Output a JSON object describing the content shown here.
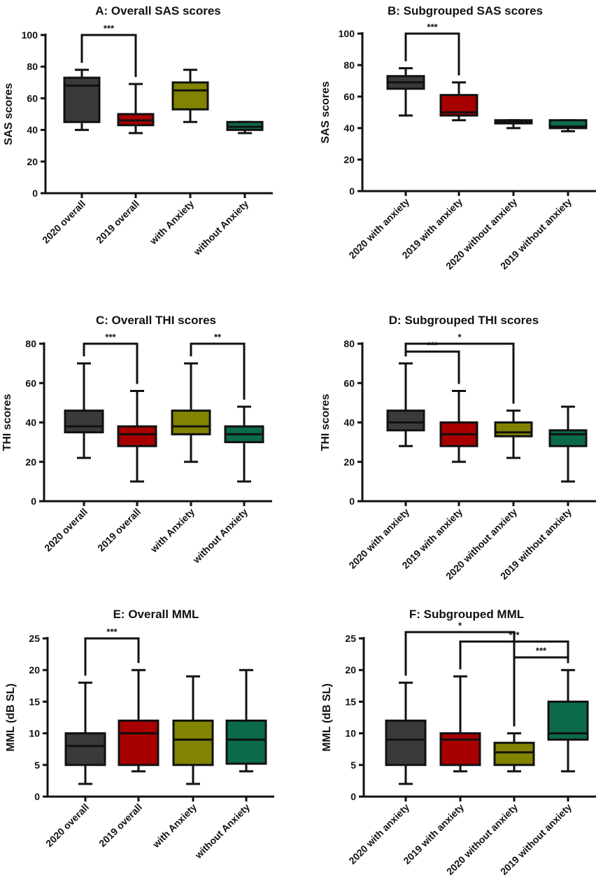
{
  "colors": {
    "2020 overall": "#3a3a3a",
    "2019 overall": "#a80000",
    "with Anxiety": "#828300",
    "without Anxiety": "#0b6b49",
    "2020 with anxiety": "#3a3a3a",
    "2019 with anxiety": "#a80000",
    "2020 without anxiety": "#828300",
    "2019 without anxiety": "#0b6b49"
  },
  "chart_data": [
    {
      "type": "box",
      "title": "A: Overall SAS scores",
      "ylabel": "SAS scores",
      "ylim": [
        0,
        100
      ],
      "yticks": [
        0,
        20,
        40,
        60,
        80,
        100
      ],
      "categories": [
        "2020 overall",
        "2019 overall",
        "with Anxiety",
        "without Anxiety"
      ],
      "boxes": [
        {
          "min": 40,
          "q1": 45,
          "median": 68,
          "q3": 73,
          "max": 78
        },
        {
          "min": 38,
          "q1": 43,
          "median": 46,
          "q3": 50,
          "max": 69
        },
        {
          "min": 45,
          "q1": 53,
          "median": 65,
          "q3": 70,
          "max": 78
        },
        {
          "min": 38,
          "q1": 40,
          "median": 42,
          "q3": 45,
          "max": 45
        }
      ],
      "significance": [
        {
          "from": 0,
          "to": 1,
          "label": "***",
          "y": 100
        }
      ]
    },
    {
      "type": "box",
      "title": "B: Subgrouped SAS scores",
      "ylabel": "SAS scores",
      "ylim": [
        0,
        100
      ],
      "yticks": [
        0,
        20,
        40,
        60,
        80,
        100
      ],
      "categories": [
        "2020 with anxiety",
        "2019 with anxiety",
        "2020 without anxiety",
        "2019 without anxiety"
      ],
      "boxes": [
        {
          "min": 48,
          "q1": 65,
          "median": 69,
          "q3": 73,
          "max": 78
        },
        {
          "min": 45,
          "q1": 48,
          "median": 50,
          "q3": 61,
          "max": 69
        },
        {
          "min": 40,
          "q1": 43,
          "median": 44,
          "q3": 45,
          "max": 45
        },
        {
          "min": 38,
          "q1": 40,
          "median": 41,
          "q3": 45,
          "max": 45
        }
      ],
      "significance": [
        {
          "from": 0,
          "to": 1,
          "label": "***",
          "y": 100
        }
      ]
    },
    {
      "type": "box",
      "title": "C: Overall THI scores",
      "ylabel": "THI scores",
      "ylim": [
        0,
        80
      ],
      "yticks": [
        0,
        20,
        40,
        60,
        80
      ],
      "categories": [
        "2020 overall",
        "2019 overall",
        "with Anxiety",
        "without Anxiety"
      ],
      "boxes": [
        {
          "min": 22,
          "q1": 35,
          "median": 38,
          "q3": 46,
          "max": 70
        },
        {
          "min": 10,
          "q1": 28,
          "median": 34,
          "q3": 38,
          "max": 56
        },
        {
          "min": 20,
          "q1": 34,
          "median": 38,
          "q3": 46,
          "max": 70
        },
        {
          "min": 10,
          "q1": 30,
          "median": 34,
          "q3": 38,
          "max": 48
        }
      ],
      "significance": [
        {
          "from": 0,
          "to": 1,
          "label": "***",
          "y": 80
        },
        {
          "from": 2,
          "to": 3,
          "label": "**",
          "y": 80
        }
      ]
    },
    {
      "type": "box",
      "title": "D: Subgrouped THI scores",
      "ylabel": "THI scores",
      "ylim": [
        0,
        80
      ],
      "yticks": [
        0,
        20,
        40,
        60,
        80
      ],
      "categories": [
        "2020 with anxiety",
        "2019 with anxiety",
        "2020 without anxiety",
        "2019 without anxiety"
      ],
      "boxes": [
        {
          "min": 28,
          "q1": 36,
          "median": 40,
          "q3": 46,
          "max": 70
        },
        {
          "min": 20,
          "q1": 28,
          "median": 34,
          "q3": 40,
          "max": 56
        },
        {
          "min": 22,
          "q1": 33,
          "median": 35,
          "q3": 40,
          "max": 46
        },
        {
          "min": 10,
          "q1": 28,
          "median": 34,
          "q3": 36,
          "max": 48
        }
      ],
      "significance": [
        {
          "from": 0,
          "to": 2,
          "label": "*",
          "y": 80
        },
        {
          "from": 0,
          "to": 1,
          "label": "***",
          "y": 76
        }
      ]
    },
    {
      "type": "box",
      "title": "E: Overall MML",
      "ylabel": "MML (dB SL)",
      "ylim": [
        0,
        25
      ],
      "yticks": [
        0,
        5,
        10,
        15,
        20,
        25
      ],
      "categories": [
        "2020 overall",
        "2019 overall",
        "with Anxiety",
        "without Anxiety"
      ],
      "boxes": [
        {
          "min": 2,
          "q1": 5,
          "median": 8,
          "q3": 10,
          "max": 18
        },
        {
          "min": 4,
          "q1": 5,
          "median": 10,
          "q3": 12,
          "max": 20
        },
        {
          "min": 2,
          "q1": 5,
          "median": 9,
          "q3": 12,
          "max": 19
        },
        {
          "min": 4,
          "q1": 5.2,
          "median": 9,
          "q3": 12,
          "max": 20
        }
      ],
      "significance": [
        {
          "from": 0,
          "to": 1,
          "label": "***",
          "y": 25
        }
      ]
    },
    {
      "type": "box",
      "title": "F: Subgrouped MML",
      "ylabel": "MML (dB SL)",
      "ylim": [
        0,
        25
      ],
      "yticks": [
        0,
        5,
        10,
        15,
        20,
        25
      ],
      "categories": [
        "2020 with anxiety",
        "2019 with anxiety",
        "2020 without anxiety",
        "2019 without anxiety"
      ],
      "boxes": [
        {
          "min": 2,
          "q1": 5,
          "median": 9,
          "q3": 12,
          "max": 18
        },
        {
          "min": 4,
          "q1": 5,
          "median": 9,
          "q3": 10,
          "max": 19
        },
        {
          "min": 4,
          "q1": 5,
          "median": 7,
          "q3": 8.5,
          "max": 10
        },
        {
          "min": 4,
          "q1": 9,
          "median": 10,
          "q3": 15,
          "max": 20
        }
      ],
      "significance": [
        {
          "from": 0,
          "to": 2,
          "label": "*",
          "y": 26
        },
        {
          "from": 1,
          "to": 3,
          "label": "***",
          "y": 24.5
        },
        {
          "from": 2,
          "to": 3,
          "label": "***",
          "y": 22
        }
      ]
    }
  ]
}
